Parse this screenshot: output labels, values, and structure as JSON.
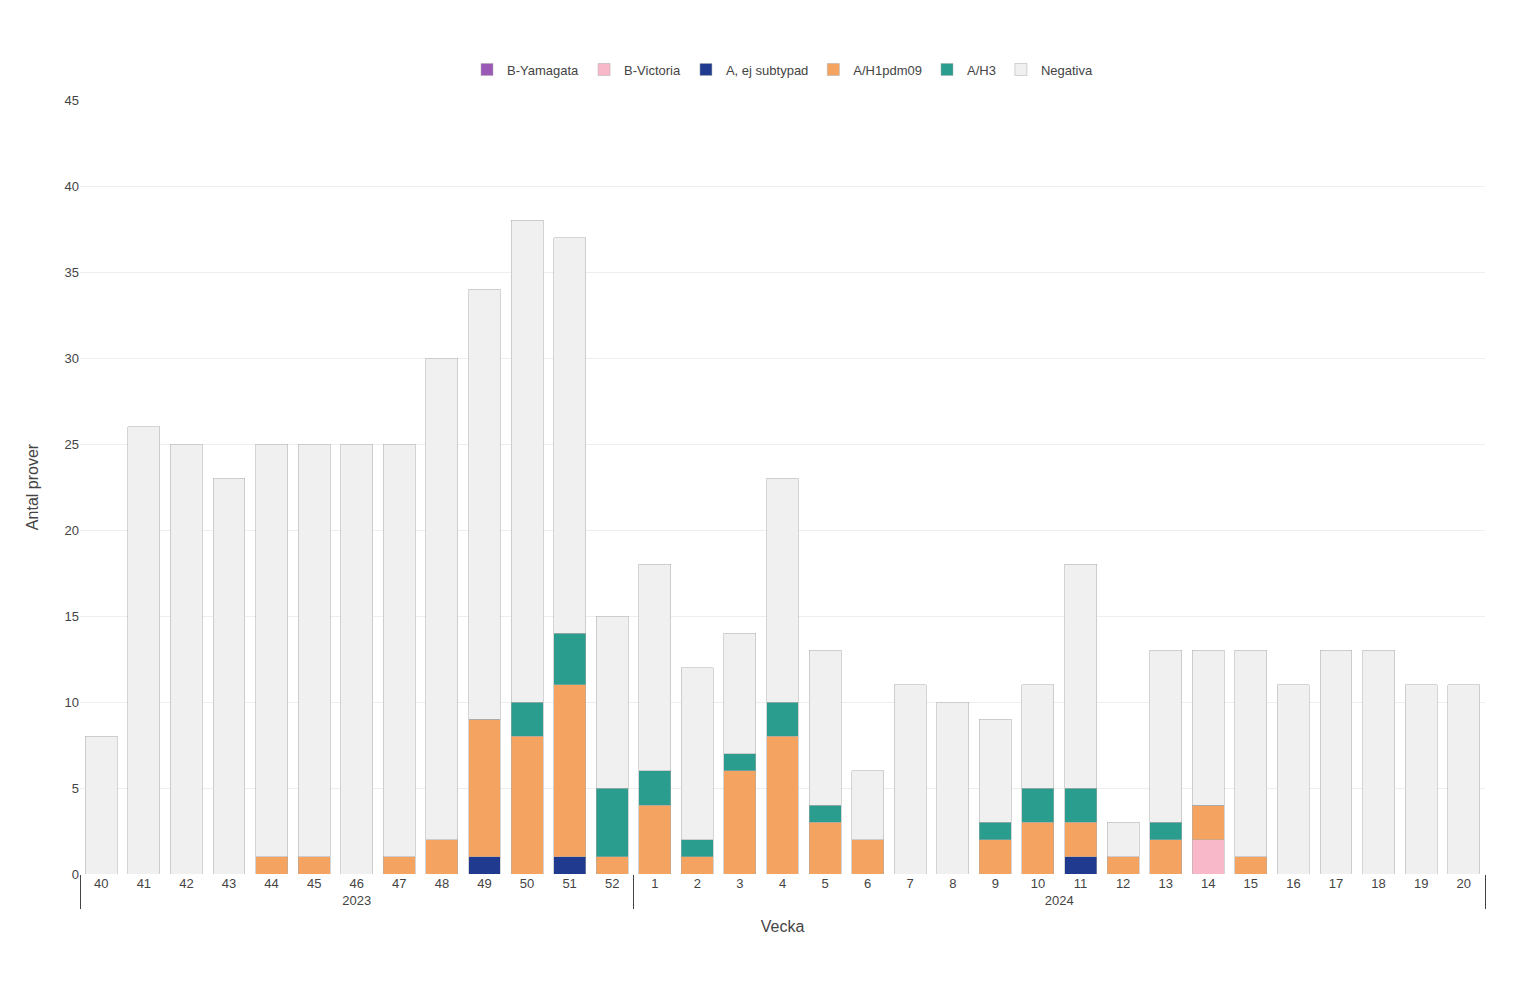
{
  "chart_data": {
    "type": "bar",
    "stacked": true,
    "xlabel": "Vecka",
    "ylabel": "Antal prover",
    "categories": [
      [
        "2023",
        "40"
      ],
      [
        "2023",
        "41"
      ],
      [
        "2023",
        "42"
      ],
      [
        "2023",
        "43"
      ],
      [
        "2023",
        "44"
      ],
      [
        "2023",
        "45"
      ],
      [
        "2023",
        "46"
      ],
      [
        "2023",
        "47"
      ],
      [
        "2023",
        "48"
      ],
      [
        "2023",
        "49"
      ],
      [
        "2023",
        "50"
      ],
      [
        "2023",
        "51"
      ],
      [
        "2023",
        "52"
      ],
      [
        "2024",
        "1"
      ],
      [
        "2024",
        "2"
      ],
      [
        "2024",
        "3"
      ],
      [
        "2024",
        "4"
      ],
      [
        "2024",
        "5"
      ],
      [
        "2024",
        "6"
      ],
      [
        "2024",
        "7"
      ],
      [
        "2024",
        "8"
      ],
      [
        "2024",
        "9"
      ],
      [
        "2024",
        "10"
      ],
      [
        "2024",
        "11"
      ],
      [
        "2024",
        "12"
      ],
      [
        "2024",
        "13"
      ],
      [
        "2024",
        "14"
      ],
      [
        "2024",
        "15"
      ],
      [
        "2024",
        "16"
      ],
      [
        "2024",
        "17"
      ],
      [
        "2024",
        "18"
      ],
      [
        "2024",
        "19"
      ],
      [
        "2024",
        "20"
      ]
    ],
    "series": [
      {
        "name": "B-Yamagata",
        "color": "#9b59b6",
        "values": [
          0,
          0,
          0,
          0,
          0,
          0,
          0,
          0,
          0,
          0,
          0,
          0,
          0,
          0,
          0,
          0,
          0,
          0,
          0,
          0,
          0,
          0,
          0,
          0,
          0,
          0,
          0,
          0,
          0,
          0,
          0,
          0,
          0
        ]
      },
      {
        "name": "B-Victoria",
        "color": "#f9b8ca",
        "values": [
          0,
          0,
          0,
          0,
          0,
          0,
          0,
          0,
          0,
          0,
          0,
          0,
          0,
          0,
          0,
          0,
          0,
          0,
          0,
          0,
          0,
          0,
          0,
          0,
          0,
          0,
          2,
          0,
          0,
          0,
          0,
          0,
          0
        ]
      },
      {
        "name": "A, ej subtypad",
        "color": "#1f3a8f",
        "values": [
          0,
          0,
          0,
          0,
          0,
          0,
          0,
          0,
          0,
          1,
          0,
          1,
          0,
          0,
          0,
          0,
          0,
          0,
          0,
          0,
          0,
          0,
          0,
          1,
          0,
          0,
          0,
          0,
          0,
          0,
          0,
          0,
          0
        ]
      },
      {
        "name": "A/H1pdm09",
        "color": "#f4a460",
        "values": [
          0,
          0,
          0,
          0,
          1,
          1,
          0,
          1,
          2,
          8,
          8,
          10,
          1,
          4,
          1,
          6,
          8,
          3,
          2,
          0,
          0,
          2,
          3,
          2,
          1,
          2,
          2,
          1,
          0,
          0,
          0,
          0,
          0
        ]
      },
      {
        "name": "A/H3",
        "color": "#2a9d8f",
        "values": [
          0,
          0,
          0,
          0,
          0,
          0,
          0,
          0,
          0,
          0,
          2,
          3,
          4,
          2,
          1,
          1,
          2,
          1,
          0,
          0,
          0,
          1,
          2,
          2,
          0,
          1,
          0,
          0,
          0,
          0,
          0,
          0,
          0
        ]
      },
      {
        "name": "Negativa",
        "color": "#f0f0f0",
        "values": [
          8,
          26,
          25,
          23,
          24,
          24,
          25,
          24,
          28,
          25,
          28,
          23,
          10,
          12,
          10,
          7,
          13,
          9,
          4,
          11,
          10,
          6,
          6,
          13,
          2,
          10,
          9,
          12,
          11,
          13,
          13,
          11,
          11
        ]
      }
    ],
    "ylim": [
      0,
      45
    ],
    "yticks": [
      0,
      5,
      10,
      15,
      20,
      25,
      30,
      35,
      40,
      45
    ],
    "grid": true,
    "legend": "top"
  }
}
